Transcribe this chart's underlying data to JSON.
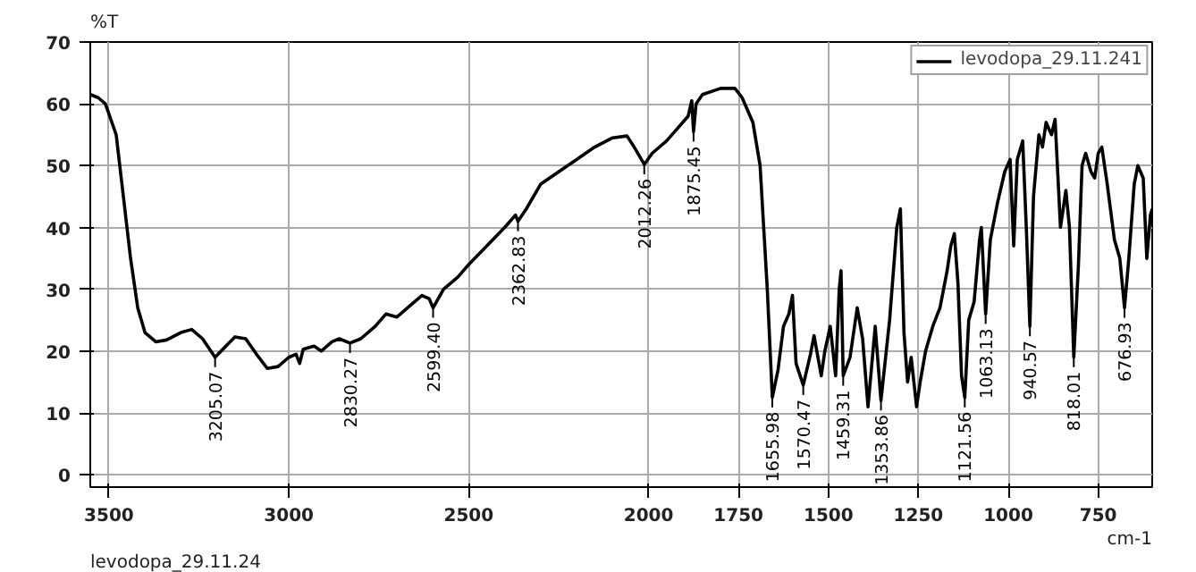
{
  "chart_data": {
    "type": "line",
    "ylabel": "%T",
    "xlabel": "cm-1",
    "xlim": [
      3552,
      600
    ],
    "ylim": [
      -2,
      70
    ],
    "xticks": [
      3500,
      3000,
      2500,
      2000,
      1750,
      1500,
      1250,
      1000,
      750
    ],
    "yticks": [
      0,
      10,
      20,
      30,
      40,
      50,
      60,
      70
    ],
    "grid": true,
    "legend": "top right",
    "line_style": "solid",
    "series": [
      {
        "name": "levodopa_29.11.241",
        "color": "#000000",
        "x": [
          3552,
          3530,
          3510,
          3480,
          3460,
          3440,
          3420,
          3400,
          3370,
          3340,
          3300,
          3270,
          3240,
          3205,
          3180,
          3150,
          3120,
          3090,
          3060,
          3030,
          3000,
          2980,
          2970,
          2960,
          2930,
          2910,
          2880,
          2860,
          2830,
          2800,
          2760,
          2730,
          2700,
          2660,
          2630,
          2610,
          2599,
          2570,
          2530,
          2500,
          2450,
          2400,
          2370,
          2363,
          2340,
          2300,
          2250,
          2200,
          2150,
          2100,
          2060,
          2040,
          2012,
          1990,
          1950,
          1920,
          1890,
          1880,
          1875,
          1868,
          1850,
          1800,
          1760,
          1740,
          1710,
          1690,
          1670,
          1656,
          1640,
          1625,
          1610,
          1600,
          1590,
          1570,
          1550,
          1540,
          1520,
          1510,
          1495,
          1480,
          1470,
          1465,
          1459,
          1440,
          1420,
          1405,
          1390,
          1370,
          1354,
          1330,
          1310,
          1300,
          1290,
          1280,
          1270,
          1255,
          1245,
          1230,
          1210,
          1190,
          1170,
          1160,
          1150,
          1140,
          1130,
          1121,
          1110,
          1095,
          1080,
          1075,
          1063,
          1050,
          1030,
          1010,
          995,
          985,
          975,
          960,
          950,
          940,
          930,
          915,
          905,
          895,
          880,
          870,
          855,
          840,
          830,
          818,
          805,
          795,
          785,
          770,
          760,
          750,
          740,
          725,
          705,
          690,
          677,
          665,
          650,
          640,
          625,
          615,
          605,
          600
        ],
        "values": [
          61.5,
          61,
          60,
          55,
          45,
          35,
          27,
          23,
          21.5,
          21.8,
          23,
          23.5,
          22,
          19,
          20.5,
          22.3,
          22,
          19.5,
          17.2,
          17.5,
          19,
          19.5,
          18,
          20.3,
          20.8,
          20,
          21.5,
          22,
          21.3,
          22,
          24,
          26,
          25.5,
          27.5,
          29,
          28.5,
          27,
          30,
          32,
          34,
          37,
          40,
          42,
          41,
          43,
          47,
          49,
          51,
          53,
          54.5,
          54.8,
          53,
          50.2,
          52,
          54,
          56,
          58,
          60.5,
          55.5,
          60,
          61.5,
          62.5,
          62.5,
          61,
          57,
          50,
          30,
          12.5,
          17,
          24,
          26,
          29,
          18,
          14.5,
          19.5,
          22.5,
          16,
          20,
          24,
          16,
          30,
          33,
          16,
          19,
          27,
          22,
          11,
          24,
          12,
          25,
          40,
          43,
          23,
          15,
          19,
          11,
          15,
          20,
          24,
          27,
          33,
          37,
          39,
          31,
          16,
          12.5,
          25,
          28,
          38,
          40,
          26,
          38,
          44,
          49,
          51,
          37,
          51,
          54,
          40,
          24,
          45,
          55,
          53,
          57,
          55,
          57.5,
          40,
          46,
          40,
          19,
          34,
          50,
          52,
          49,
          48,
          52,
          53,
          47,
          38,
          35,
          27,
          35,
          47,
          50,
          48,
          35,
          42,
          43
        ]
      }
    ],
    "annotations": [
      {
        "text": "3205.07",
        "x": 3205,
        "y": 19
      },
      {
        "text": "2830.27",
        "x": 2830,
        "y": 21.3
      },
      {
        "text": "2599.40",
        "x": 2599,
        "y": 27
      },
      {
        "text": "2362.83",
        "x": 2363,
        "y": 41
      },
      {
        "text": "2012.26",
        "x": 2012,
        "y": 50.2
      },
      {
        "text": "1875.45",
        "x": 1875,
        "y": 55.5
      },
      {
        "text": "1655.98",
        "x": 1656,
        "y": 12.5
      },
      {
        "text": "1570.47",
        "x": 1570,
        "y": 14.5
      },
      {
        "text": "1459.31",
        "x": 1459,
        "y": 16
      },
      {
        "text": "1353.86",
        "x": 1354,
        "y": 12
      },
      {
        "text": "1121.56",
        "x": 1121,
        "y": 12.5
      },
      {
        "text": "1063.13",
        "x": 1063,
        "y": 26
      },
      {
        "text": "940.57",
        "x": 940,
        "y": 24
      },
      {
        "text": "818.01",
        "x": 818,
        "y": 19
      },
      {
        "text": "676.93",
        "x": 677,
        "y": 27
      },
      "levodopa_29.11.24"
    ]
  }
}
